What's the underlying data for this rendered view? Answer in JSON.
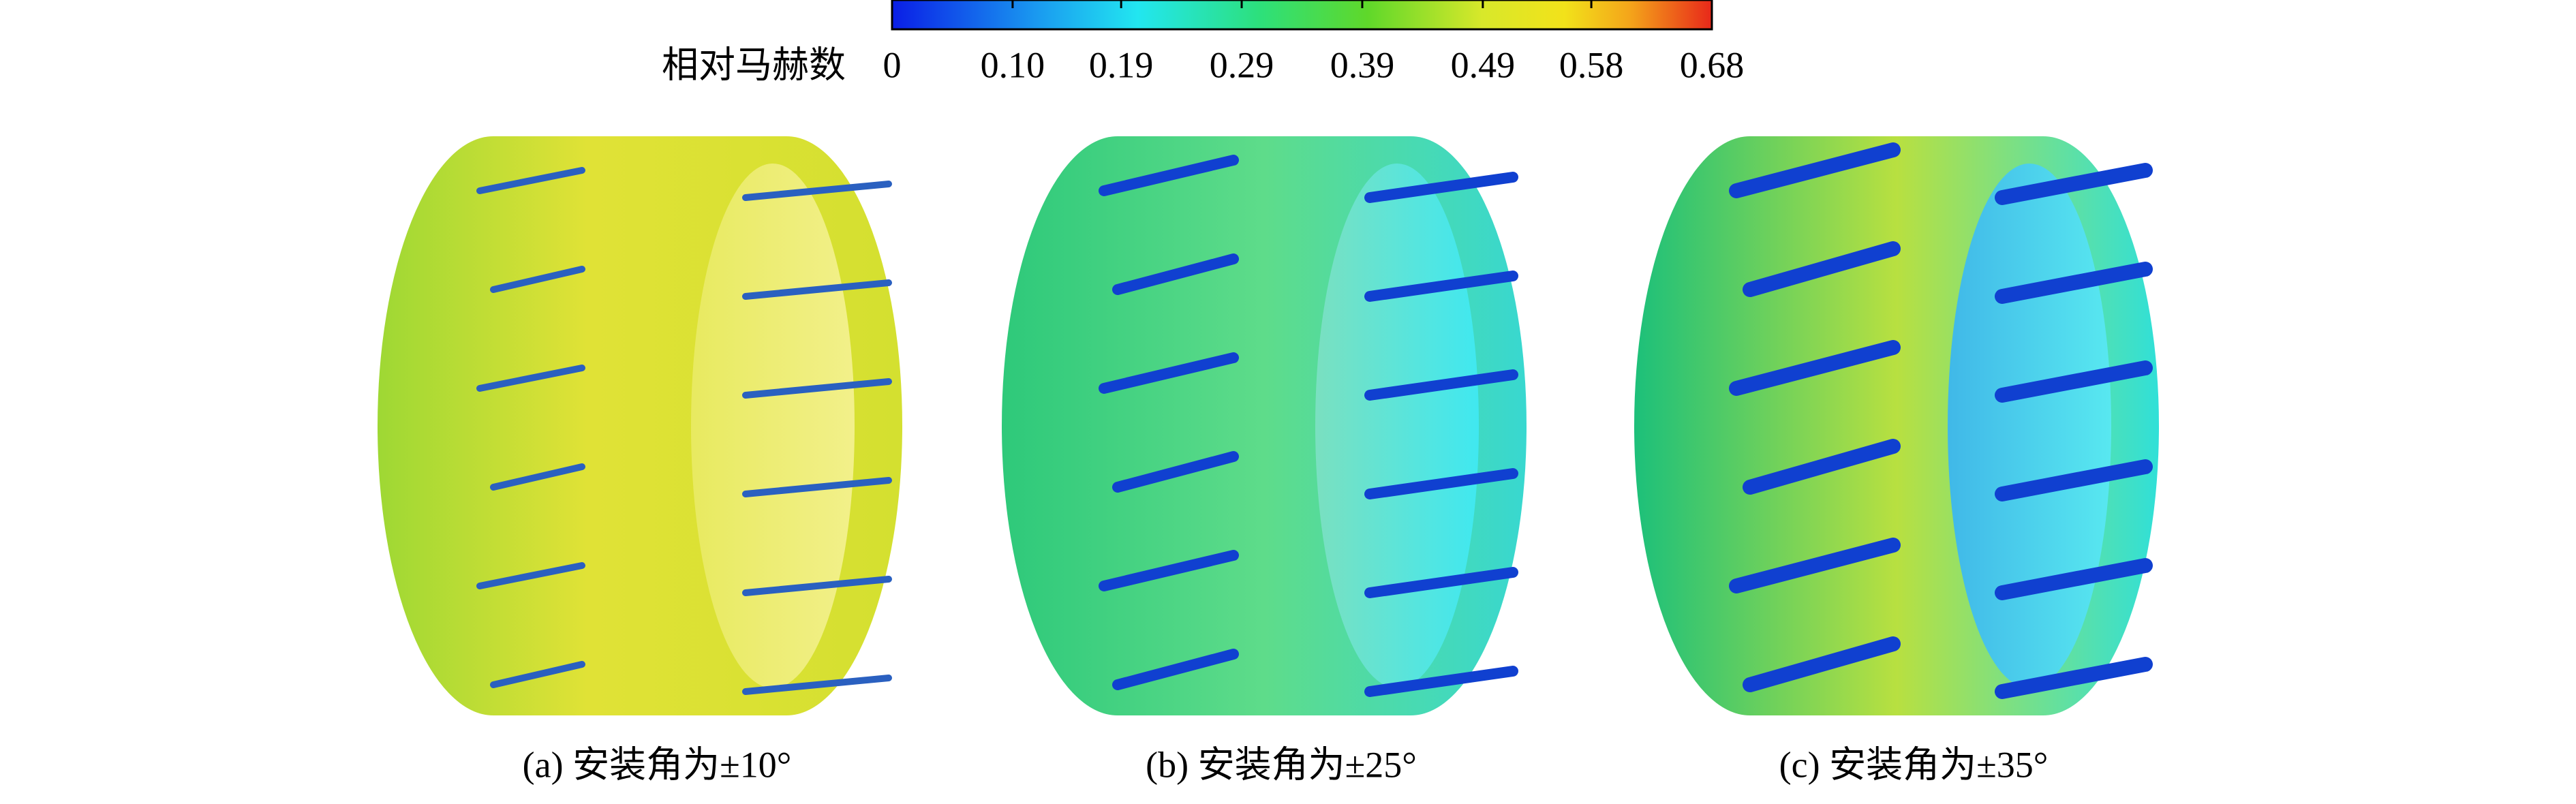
{
  "colorbar": {
    "label": "相对马赫数",
    "range": [
      0,
      0.68
    ],
    "ticks": [
      0,
      {
        "value": 0.1,
        "label": "0.10"
      },
      0.19,
      0.29,
      0.39,
      0.49,
      0.58,
      0.68
    ]
  },
  "panels": [
    {
      "caption": "(a) 安装角为±10°"
    },
    {
      "caption": "(b) 安装角为±25°"
    },
    {
      "caption": "(c) 安装角为±35°"
    }
  ]
}
